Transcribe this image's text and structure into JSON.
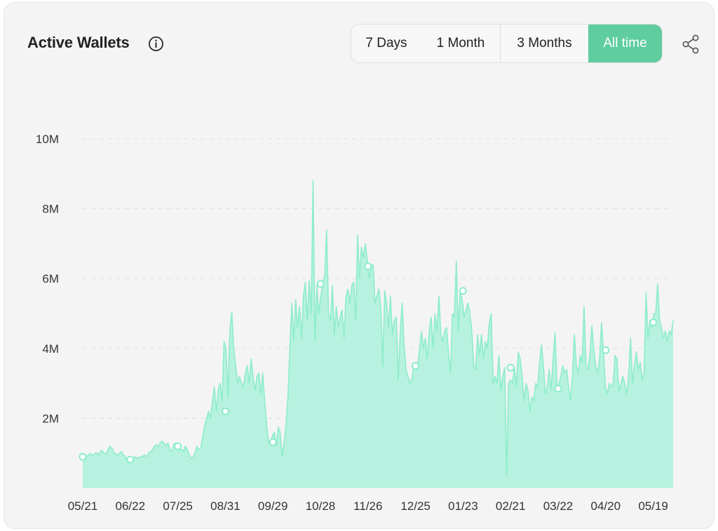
{
  "header": {
    "title": "Active Wallets",
    "info_icon": "info-icon",
    "share_icon": "share-icon"
  },
  "range": {
    "options": [
      "7 Days",
      "1 Month",
      "3 Months",
      "All time"
    ],
    "selected": "All time"
  },
  "colors": {
    "accent": "#5fcda0",
    "area_fill": "#b6f2df",
    "area_line": "#8eeccd",
    "grid": "#e0e0e0"
  },
  "chart_data": {
    "type": "area",
    "title": "Active Wallets",
    "xlabel": "",
    "ylabel": "",
    "ylim": [
      0,
      10000000
    ],
    "y_ticks": [
      2000000,
      4000000,
      6000000,
      8000000,
      10000000
    ],
    "y_tick_labels": [
      "2M",
      "4M",
      "6M",
      "8M",
      "10M"
    ],
    "x_tick_labels": [
      "05/21",
      "06/22",
      "07/25",
      "08/31",
      "09/29",
      "10/28",
      "11/26",
      "12/25",
      "01/23",
      "02/21",
      "03/22",
      "04/20",
      "05/19"
    ],
    "grid": true,
    "series": [
      {
        "values": [
          0.9,
          0.9,
          0.92,
          0.95,
          1.0,
          0.92,
          0.98,
          1.02,
          0.95,
          1.05,
          1.08,
          1.0,
          0.98,
          1.1,
          1.2,
          1.15,
          1.02,
          0.98,
          0.95,
          1.0,
          1.05,
          0.95,
          0.9,
          0.8,
          0.82,
          0.88,
          0.85,
          0.9,
          0.86,
          0.88,
          0.9,
          0.92,
          0.95,
          0.9,
          1.0,
          1.05,
          1.1,
          1.2,
          1.25,
          1.18,
          1.3,
          1.35,
          1.28,
          1.22,
          1.3,
          1.1,
          1.05,
          1.25,
          1.3,
          1.2,
          1.1,
          1.12,
          1.05,
          1.2,
          1.1,
          0.95,
          0.85,
          0.9,
          1.0,
          1.2,
          1.1,
          1.15,
          1.5,
          1.8,
          2.0,
          2.2,
          2.0,
          2.5,
          2.9,
          2.2,
          2.8,
          3.0,
          2.5,
          4.2,
          4.0,
          2.6,
          4.5,
          5.05,
          4.0,
          3.5,
          3.0,
          3.2,
          3.0,
          2.9,
          3.3,
          3.5,
          3.0,
          3.7,
          3.2,
          2.8,
          3.2,
          3.3,
          2.7,
          3.3,
          2.5,
          1.8,
          1.3,
          1.3,
          1.5,
          1.6,
          1.2,
          1.75,
          1.6,
          0.9,
          1.3,
          1.8,
          2.6,
          4.0,
          5.3,
          4.2,
          5.4,
          4.6,
          5.2,
          4.3,
          5.5,
          5.9,
          4.8,
          5.95,
          5.0,
          8.8,
          4.2,
          5.8,
          5.0,
          5.5,
          5.85,
          6.1,
          7.4,
          5.0,
          4.8,
          5.8,
          4.4,
          5.2,
          4.6,
          4.9,
          5.1,
          4.3,
          5.5,
          5.7,
          5.3,
          5.8,
          5.9,
          4.8,
          7.25,
          6.0,
          6.9,
          6.6,
          7.0,
          6.5,
          6.0,
          6.35,
          6.4,
          5.3,
          5.5,
          5.7,
          5.2,
          3.5,
          5.65,
          5.3,
          4.6,
          5.5,
          4.4,
          4.8,
          4.9,
          3.1,
          4.4,
          5.3,
          4.1,
          3.4,
          3.2,
          3.0,
          3.1,
          3.5,
          3.4,
          3.5,
          4.0,
          4.5,
          4.0,
          4.3,
          3.7,
          4.5,
          4.9,
          4.0,
          5.0,
          4.5,
          5.5,
          4.4,
          4.2,
          4.5,
          4.6,
          3.8,
          3.3,
          5.0,
          4.9,
          6.5,
          4.5,
          5.6,
          5.4,
          4.9,
          5.1,
          5.3,
          5.0,
          4.5,
          3.5,
          3.4,
          4.4,
          3.8,
          4.4,
          3.7,
          4.2,
          4.0,
          4.7,
          5.0,
          3.0,
          3.2,
          3.0,
          3.8,
          2.8,
          3.2,
          3.45,
          0.4,
          3.0,
          3.1,
          3.0,
          3.45,
          2.9,
          3.9,
          3.7,
          3.2,
          2.5,
          3.0,
          2.8,
          2.2,
          2.6,
          2.5,
          3.0,
          2.9,
          3.6,
          4.1,
          3.5,
          2.7,
          2.9,
          3.4,
          2.8,
          3.7,
          4.45,
          2.9,
          3.0,
          3.2,
          3.5,
          3.3,
          3.4,
          2.9,
          2.5,
          3.2,
          4.4,
          3.5,
          3.3,
          3.8,
          3.6,
          5.2,
          3.5,
          3.4,
          3.8,
          4.65,
          4.0,
          3.5,
          3.3,
          3.7,
          4.75,
          3.9,
          2.9,
          2.7,
          3.0,
          2.9,
          3.0,
          3.8,
          3.7,
          2.75,
          3.0,
          3.2,
          3.0,
          2.7,
          3.2,
          4.3,
          3.0,
          3.5,
          3.9,
          3.4,
          3.6,
          3.1,
          3.3,
          5.6,
          4.3,
          4.8,
          4.6,
          5.0,
          5.0,
          5.85,
          4.8,
          4.6,
          4.3,
          4.5,
          4.2,
          4.5,
          4.4,
          4.8
        ]
      }
    ],
    "markers": [
      {
        "x": 0.2,
        "y": 0.9
      },
      {
        "x": 1.2,
        "y": 0.82
      },
      {
        "x": 2.2,
        "y": 1.2
      },
      {
        "x": 3.2,
        "y": 2.2
      },
      {
        "x": 4.2,
        "y": 1.32
      },
      {
        "x": 5.2,
        "y": 5.85
      },
      {
        "x": 6.2,
        "y": 6.35
      },
      {
        "x": 7.2,
        "y": 3.5
      },
      {
        "x": 8.2,
        "y": 5.65
      },
      {
        "x": 9.2,
        "y": 3.45
      },
      {
        "x": 10.2,
        "y": 2.85
      },
      {
        "x": 11.2,
        "y": 3.95
      },
      {
        "x": 12.2,
        "y": 4.75
      }
    ]
  }
}
